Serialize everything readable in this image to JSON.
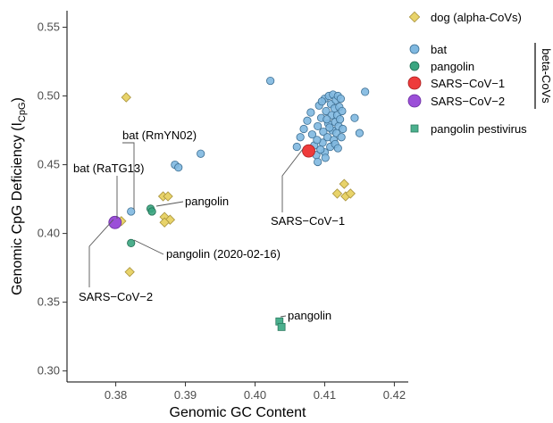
{
  "chart_data": {
    "type": "scatter",
    "xlabel": "Genomic GC Content",
    "ylabel_main": "Genomic CpG Deficiency (I",
    "ylabel_sub": "CpG",
    "ylabel_close": ")",
    "xlim": [
      0.373,
      0.422
    ],
    "ylim": [
      0.292,
      0.562
    ],
    "xticks": [
      0.38,
      0.39,
      0.4,
      0.41,
      0.42
    ],
    "xtick_labels": [
      "0.38",
      "0.39",
      "0.40",
      "0.41",
      "0.42"
    ],
    "yticks": [
      0.3,
      0.35,
      0.4,
      0.45,
      0.5,
      0.55
    ],
    "ytick_labels": [
      "0.30",
      "0.35",
      "0.40",
      "0.45",
      "0.50",
      "0.55"
    ],
    "grid": false,
    "legend_position": "right",
    "legend_group_label": "beta-CoVs",
    "series": [
      {
        "name": "dog (alpha-CoVs)",
        "shape": "diamond",
        "color": "#e8d36a",
        "stroke": "#a8923a",
        "points": [
          [
            0.3808,
            0.409
          ],
          [
            0.3815,
            0.499
          ],
          [
            0.382,
            0.372
          ],
          [
            0.3868,
            0.427
          ],
          [
            0.3875,
            0.427
          ],
          [
            0.387,
            0.412
          ],
          [
            0.3878,
            0.41
          ],
          [
            0.387,
            0.408
          ],
          [
            0.4118,
            0.429
          ],
          [
            0.4128,
            0.436
          ],
          [
            0.413,
            0.427
          ],
          [
            0.4137,
            0.429
          ]
        ]
      },
      {
        "name": "bat",
        "shape": "circle",
        "color": "#7fb8e0",
        "stroke": "#3d6f93",
        "points": [
          [
            0.3822,
            0.416
          ],
          [
            0.3885,
            0.45
          ],
          [
            0.389,
            0.448
          ],
          [
            0.3922,
            0.458
          ],
          [
            0.4022,
            0.511
          ],
          [
            0.4158,
            0.503
          ],
          [
            0.4143,
            0.484
          ],
          [
            0.415,
            0.473
          ],
          [
            0.406,
            0.463
          ],
          [
            0.4065,
            0.47
          ],
          [
            0.407,
            0.476
          ],
          [
            0.4075,
            0.482
          ],
          [
            0.408,
            0.488
          ],
          [
            0.4082,
            0.472
          ],
          [
            0.4085,
            0.464
          ],
          [
            0.4088,
            0.457
          ],
          [
            0.409,
            0.452
          ],
          [
            0.409,
            0.478
          ],
          [
            0.4092,
            0.493
          ],
          [
            0.4095,
            0.484
          ],
          [
            0.4097,
            0.466
          ],
          [
            0.4098,
            0.474
          ],
          [
            0.41,
            0.498
          ],
          [
            0.41,
            0.459
          ],
          [
            0.4102,
            0.489
          ],
          [
            0.4104,
            0.47
          ],
          [
            0.4105,
            0.48
          ],
          [
            0.4106,
            0.5
          ],
          [
            0.4108,
            0.463
          ],
          [
            0.4109,
            0.494
          ],
          [
            0.411,
            0.486
          ],
          [
            0.4111,
            0.475
          ],
          [
            0.4112,
            0.501
          ],
          [
            0.4113,
            0.468
          ],
          [
            0.4114,
            0.491
          ],
          [
            0.4115,
            0.481
          ],
          [
            0.4116,
            0.497
          ],
          [
            0.4117,
            0.473
          ],
          [
            0.4118,
            0.486
          ],
          [
            0.4119,
            0.5
          ],
          [
            0.412,
            0.478
          ],
          [
            0.4121,
            0.492
          ],
          [
            0.4122,
            0.483
          ],
          [
            0.4123,
            0.498
          ],
          [
            0.4124,
            0.47
          ],
          [
            0.4125,
            0.489
          ],
          [
            0.4126,
            0.476
          ],
          [
            0.4096,
            0.496
          ],
          [
            0.4103,
            0.483
          ],
          [
            0.4107,
            0.477
          ],
          [
            0.4089,
            0.468
          ],
          [
            0.4094,
            0.461
          ],
          [
            0.4101,
            0.455
          ],
          [
            0.4115,
            0.465
          ],
          [
            0.4119,
            0.462
          ]
        ]
      },
      {
        "name": "pangolin",
        "shape": "circle",
        "color": "#3aa580",
        "stroke": "#1f6b50",
        "points": [
          [
            0.3822,
            0.393
          ],
          [
            0.385,
            0.418
          ],
          [
            0.3852,
            0.416
          ]
        ]
      },
      {
        "name": "SARS−CoV−1",
        "shape": "circle",
        "color": "#ee3b3b",
        "stroke": "#a82020",
        "large": true,
        "points": [
          [
            0.4077,
            0.46
          ]
        ]
      },
      {
        "name": "SARS−CoV−2",
        "shape": "circle",
        "color": "#9b4fd8",
        "stroke": "#6a2ea0",
        "large": true,
        "points": [
          [
            0.3799,
            0.408
          ]
        ]
      },
      {
        "name": "pangolin pestivirus",
        "shape": "square",
        "color": "#4bb08e",
        "stroke": "#2a7a5e",
        "points": [
          [
            0.4035,
            0.336
          ],
          [
            0.4038,
            0.332
          ]
        ]
      }
    ],
    "annotations": [
      {
        "text": "bat (RmYN02)",
        "x": 0.3822,
        "y": 0.416
      },
      {
        "text": "bat (RaTG13)",
        "x": 0.3808,
        "y": 0.409
      },
      {
        "text": "pangolin",
        "x": 0.3852,
        "y": 0.417
      },
      {
        "text": "pangolin (2020-02-16)",
        "x": 0.3822,
        "y": 0.393
      },
      {
        "text": "SARS−CoV−2",
        "x": 0.3799,
        "y": 0.408
      },
      {
        "text": "SARS−CoV−1",
        "x": 0.4077,
        "y": 0.46
      },
      {
        "text": "pangolin",
        "x": 0.4038,
        "y": 0.334
      }
    ]
  }
}
